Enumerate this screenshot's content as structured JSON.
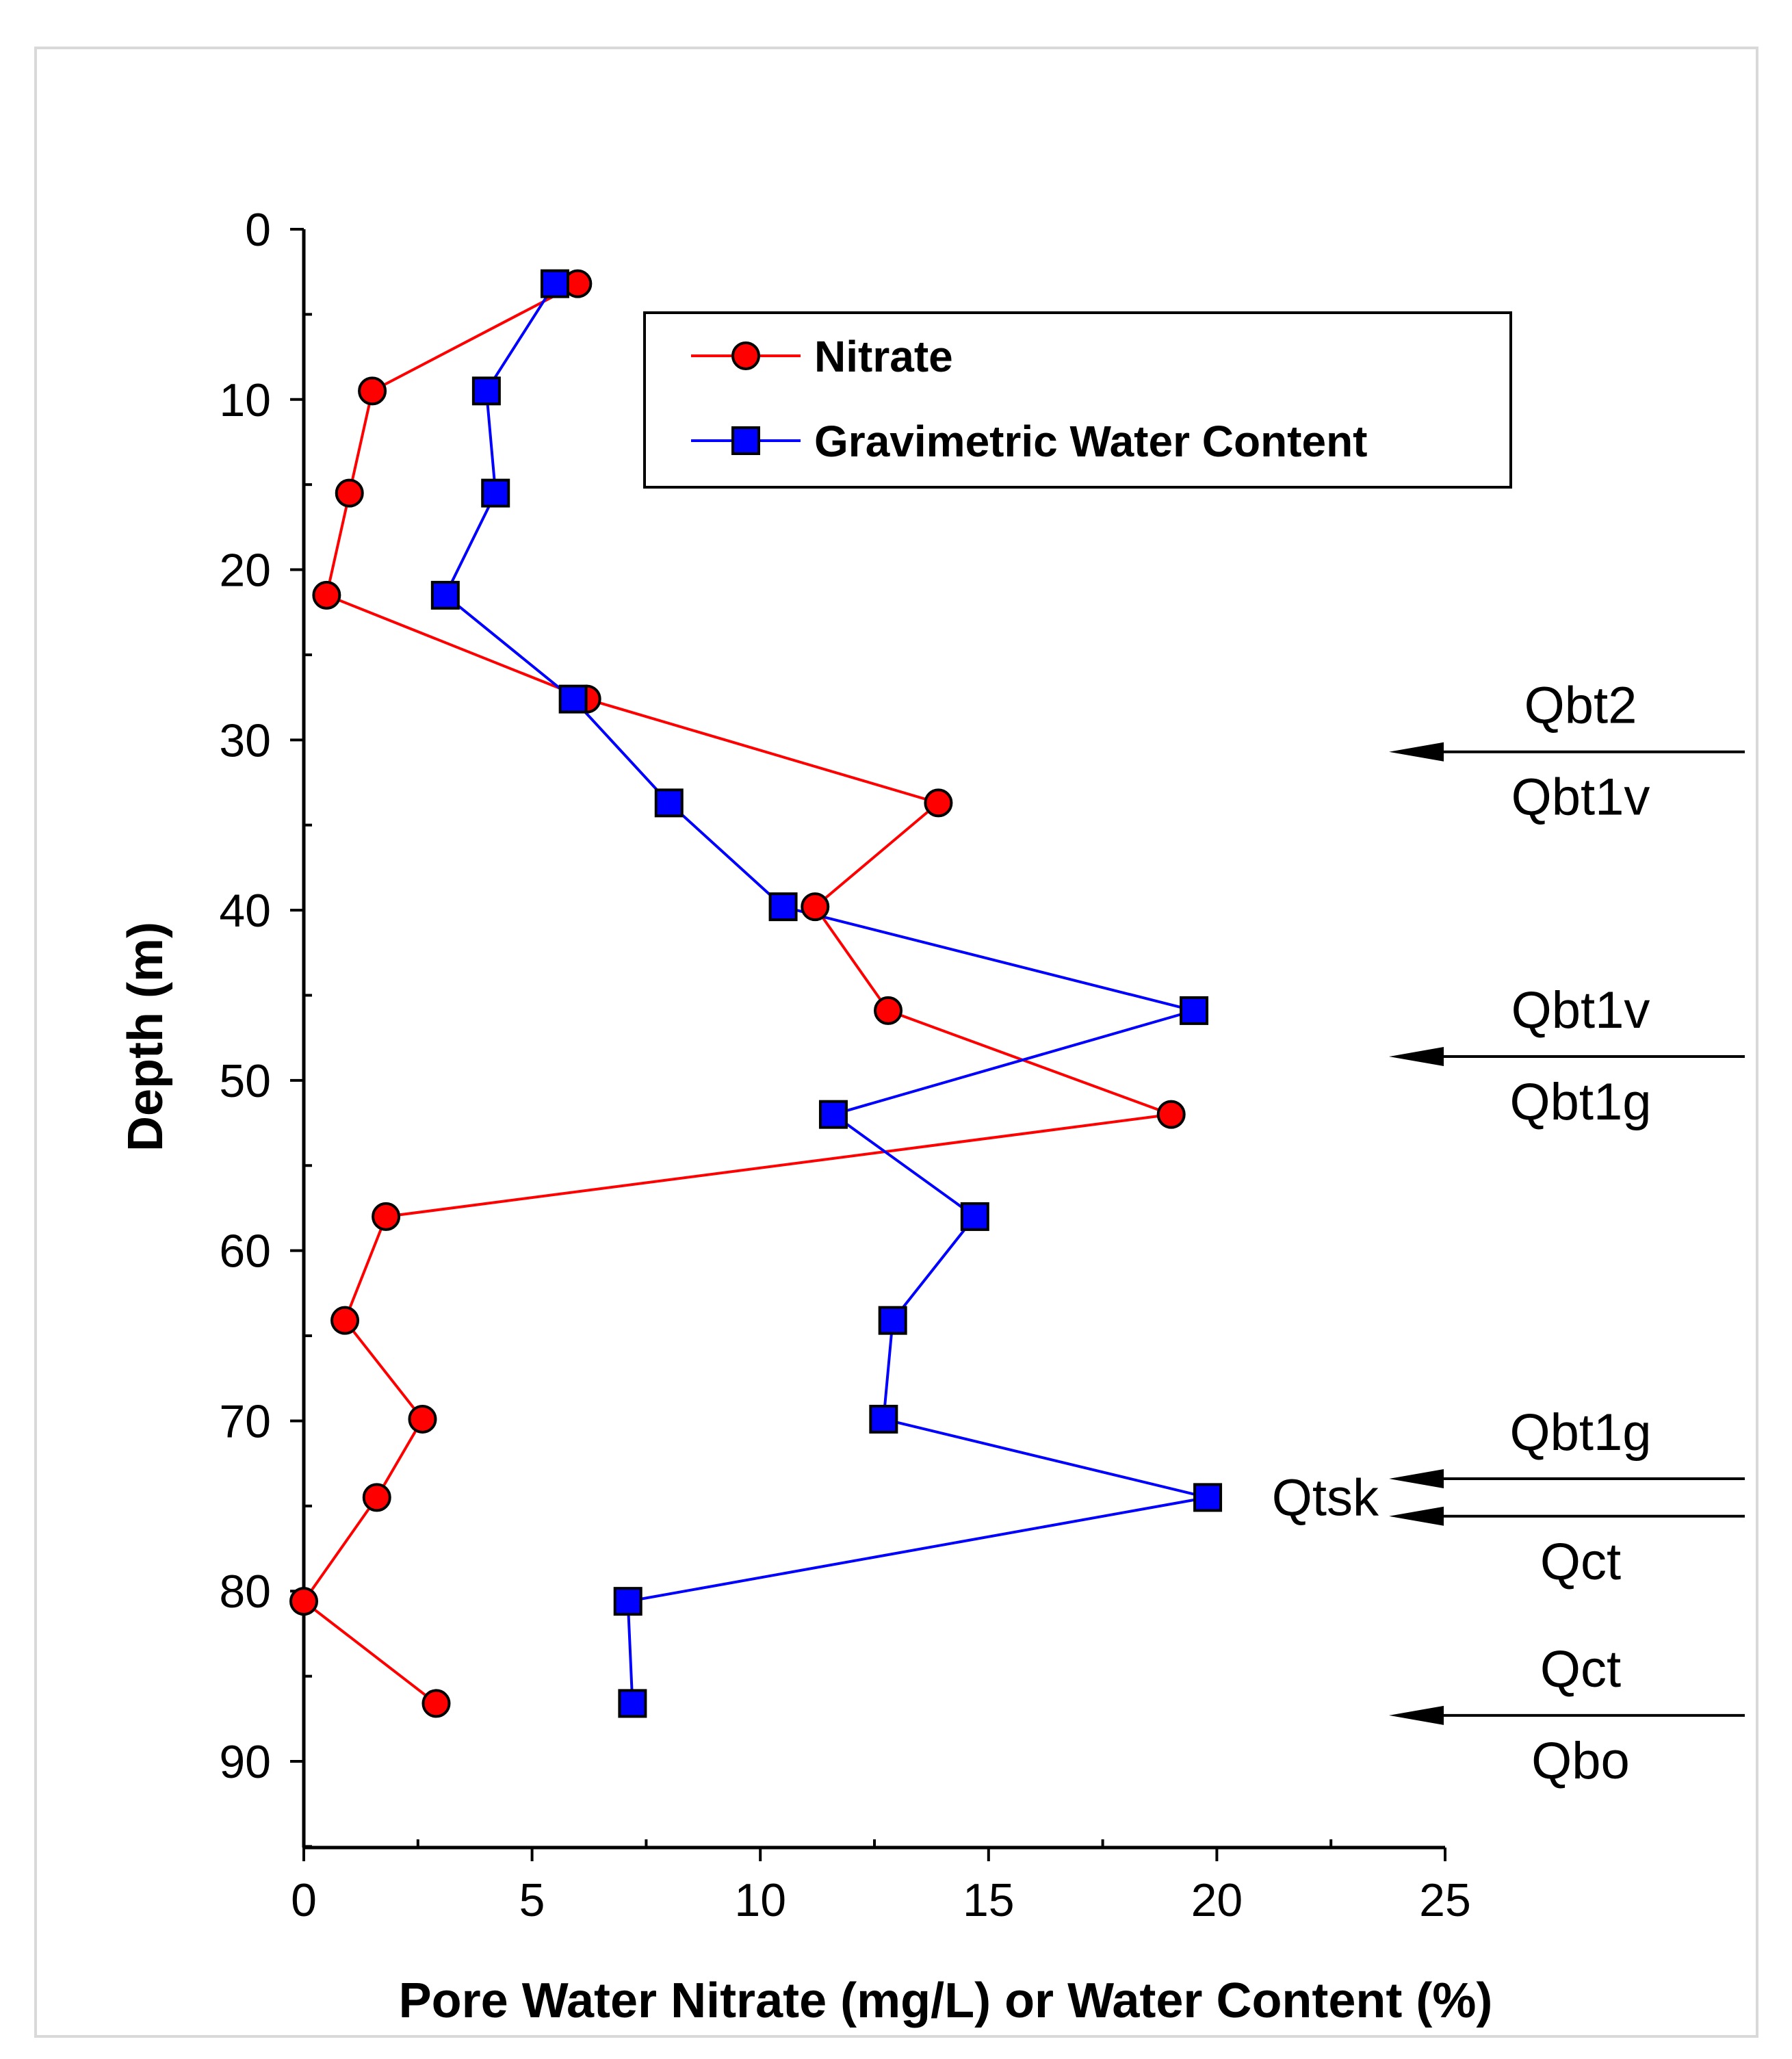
{
  "chart_data": {
    "type": "line",
    "title": "",
    "xlabel": "Pore Water Nitrate (mg/L) or Water Content (%)",
    "ylabel": "Depth (m)",
    "xlim": [
      0,
      25
    ],
    "ylim": [
      95,
      0
    ],
    "y_axis_inverted": true,
    "grid": false,
    "legend_position": "top-right",
    "x_ticks": [
      "0",
      "5",
      "10",
      "15",
      "20",
      "25"
    ],
    "y_ticks": [
      "0",
      "10",
      "20",
      "30",
      "40",
      "50",
      "60",
      "70",
      "80",
      "90"
    ],
    "series": [
      {
        "name": "Nitrate",
        "color": "#ff0000",
        "marker": "circle",
        "points": [
          {
            "x": 6.0,
            "y": 3.2
          },
          {
            "x": 1.5,
            "y": 9.5
          },
          {
            "x": 1.0,
            "y": 15.5
          },
          {
            "x": 0.5,
            "y": 21.5
          },
          {
            "x": 6.2,
            "y": 27.6
          },
          {
            "x": 13.9,
            "y": 33.7
          },
          {
            "x": 11.2,
            "y": 39.8
          },
          {
            "x": 12.8,
            "y": 45.9
          },
          {
            "x": 19.0,
            "y": 52.0
          },
          {
            "x": 1.8,
            "y": 58.0
          },
          {
            "x": 0.9,
            "y": 64.1
          },
          {
            "x": 2.6,
            "y": 69.9
          },
          {
            "x": 1.6,
            "y": 74.5
          },
          {
            "x": 0.0,
            "y": 80.6
          },
          {
            "x": 2.9,
            "y": 86.6
          }
        ]
      },
      {
        "name": "Gravimetric Water Content",
        "color": "#0000ff",
        "marker": "square",
        "points": [
          {
            "x": 5.5,
            "y": 3.2
          },
          {
            "x": 4.0,
            "y": 9.5
          },
          {
            "x": 4.2,
            "y": 15.5
          },
          {
            "x": 3.1,
            "y": 21.5
          },
          {
            "x": 5.9,
            "y": 27.6
          },
          {
            "x": 8.0,
            "y": 33.7
          },
          {
            "x": 10.5,
            "y": 39.8
          },
          {
            "x": 19.5,
            "y": 45.9
          },
          {
            "x": 11.6,
            "y": 52.0
          },
          {
            "x": 14.7,
            "y": 58.0
          },
          {
            "x": 12.9,
            "y": 64.1
          },
          {
            "x": 12.7,
            "y": 69.9
          },
          {
            "x": 19.8,
            "y": 74.5
          },
          {
            "x": 7.1,
            "y": 80.6
          },
          {
            "x": 7.2,
            "y": 86.6
          }
        ]
      }
    ],
    "annotations": [
      {
        "depth": 30.7,
        "above": "Qbt2",
        "below": "Qbt1v"
      },
      {
        "depth": 48.6,
        "above": "Qbt1v",
        "below": "Qbt1g"
      },
      {
        "depth": 73.4,
        "above": "Qbt1g",
        "below": ""
      },
      {
        "depth": 75.6,
        "above": "",
        "below": "Qct"
      },
      {
        "depth": 87.3,
        "above": "Qct",
        "below": "Qbo"
      }
    ],
    "side_label": {
      "text": "Qtsk",
      "depth": 74.5
    }
  }
}
